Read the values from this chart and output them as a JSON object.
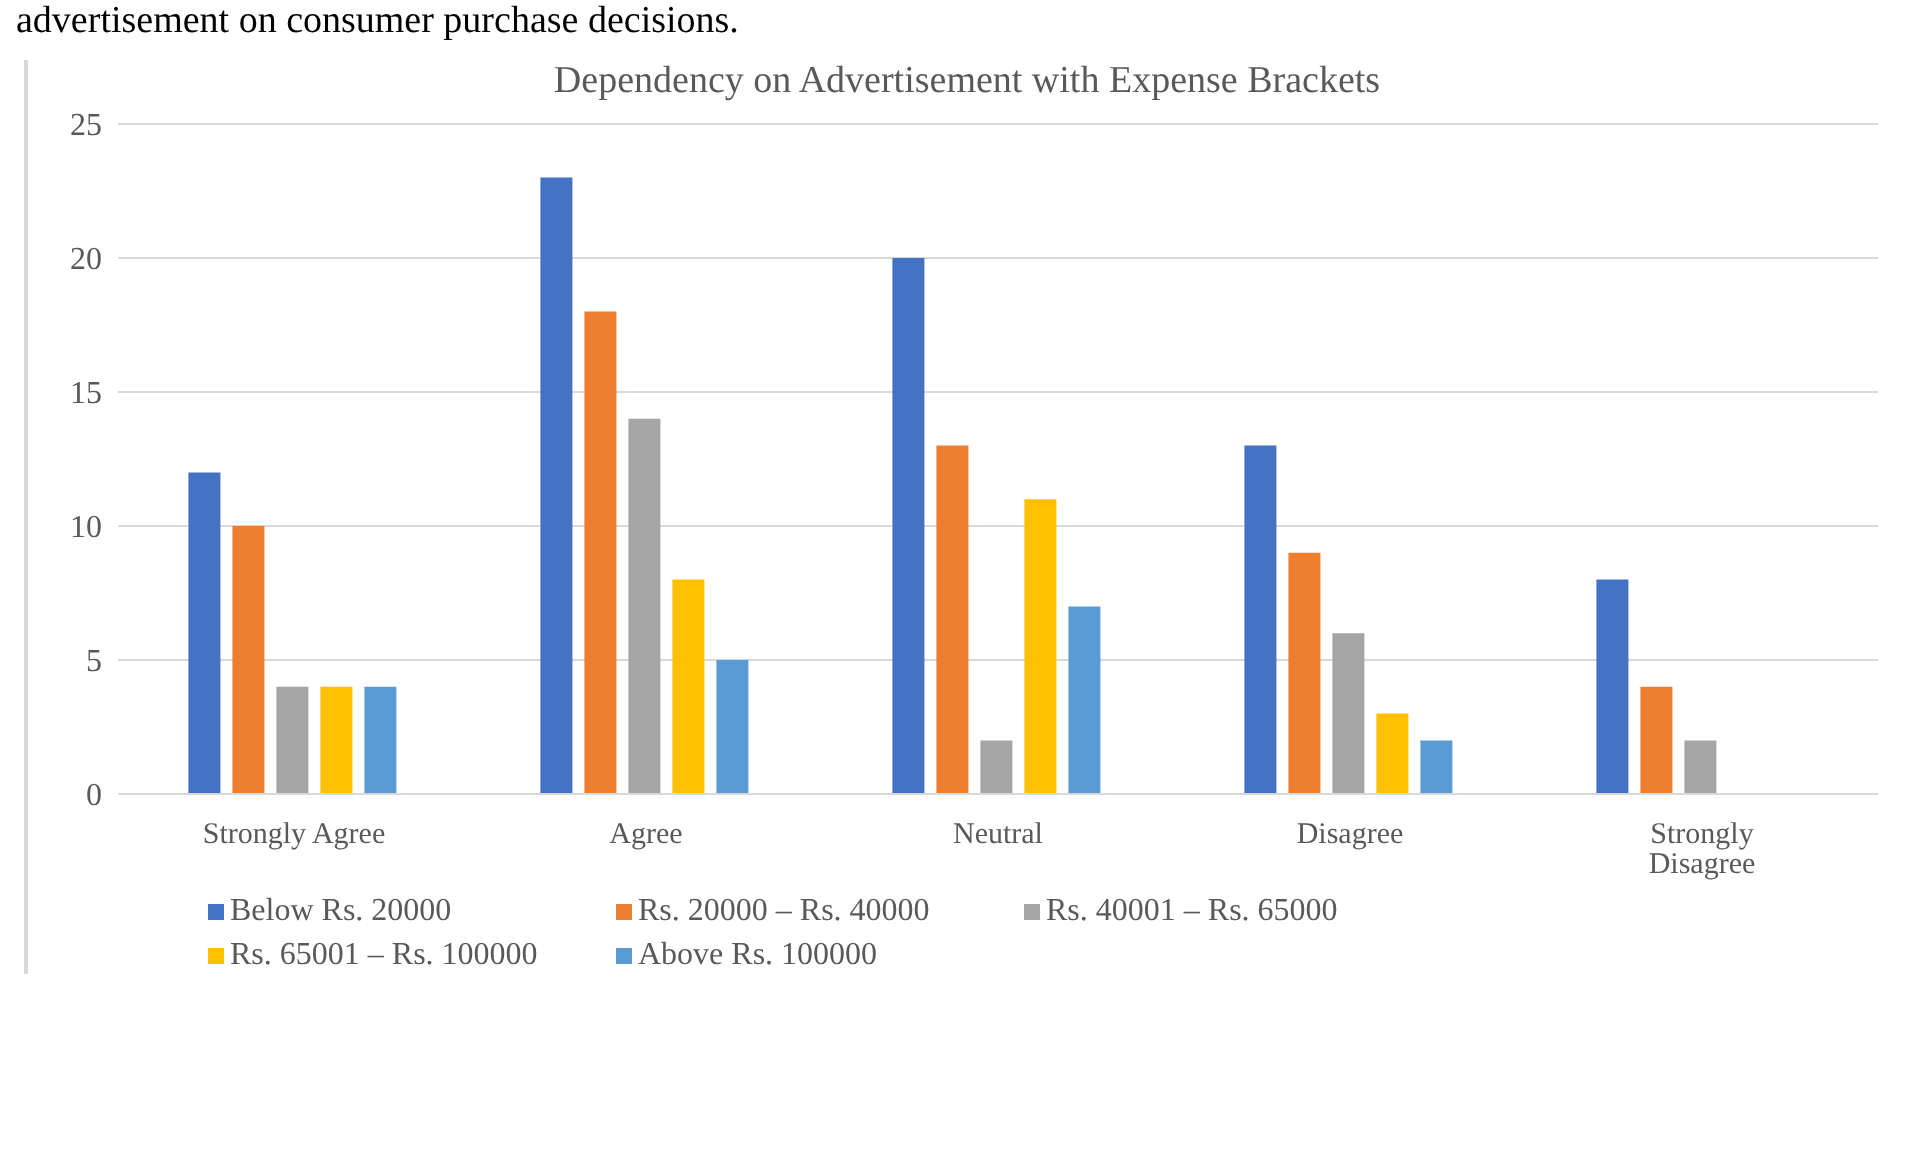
{
  "chart_data": {
    "type": "bar",
    "title": "Dependency on Advertisement with Expense Brackets",
    "annotations": [
      "advertisement on consumer purchase decisions."
    ],
    "categories": [
      "Strongly Agree",
      "Agree",
      "Neutral",
      "Disagree",
      "Strongly Disagree"
    ],
    "series": [
      {
        "name": "Below Rs. 20000",
        "color": "#4472c4",
        "values": [
          12,
          23,
          20,
          13,
          8
        ]
      },
      {
        "name": "Rs. 20000 – Rs. 40000",
        "color": "#ed7d31",
        "values": [
          10,
          18,
          13,
          9,
          4
        ]
      },
      {
        "name": "Rs. 40001 – Rs. 65000",
        "color": "#a5a5a5",
        "values": [
          4,
          14,
          2,
          6,
          2
        ]
      },
      {
        "name": "Rs. 65001 – Rs. 100000",
        "color": "#ffc000",
        "values": [
          4,
          8,
          11,
          3,
          0
        ]
      },
      {
        "name": "Above Rs. 100000",
        "color": "#5b9bd5",
        "values": [
          4,
          5,
          7,
          2,
          0
        ]
      }
    ],
    "ylim": [
      0,
      25
    ],
    "yticks": [
      0,
      5,
      10,
      15,
      20,
      25
    ],
    "grid": "y",
    "legend": "bottom"
  }
}
